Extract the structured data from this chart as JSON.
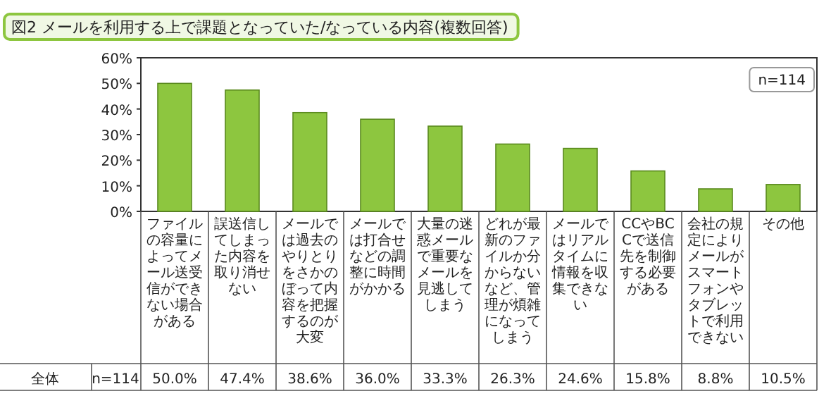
{
  "chart_data": {
    "type": "bar",
    "title": "図2 メールを利用する上で課題となっていた/なっている内容(複数回答)",
    "categories": [
      "ファイルの容量によってメール送受信ができない場合がある",
      "誤送信してしまった内容を取り消せない",
      "メールでは過去のやりとりをさかのぼって内容を把握するのが大変",
      "メールでは打合せなどの調整に時間がかかる",
      "大量の迷惑メールで重要なメールを見逃してしまう",
      "どれが最新のファイルか分からないなど、管理が煩雑になってしまう",
      "メールではリアルタイムに情報を収集できない",
      "CCやBCCで送信先を制御する必要がある",
      "会社の規定によりメールがスマートフォンやタブレットで利用できない",
      "その他"
    ],
    "values": [
      50.0,
      47.4,
      38.6,
      36.0,
      33.3,
      26.3,
      24.6,
      15.8,
      8.8,
      10.5
    ],
    "value_labels": [
      "50.0%",
      "47.4%",
      "38.6%",
      "36.0%",
      "33.3%",
      "26.3%",
      "24.6%",
      "15.8%",
      "8.8%",
      "10.5%"
    ],
    "color": "#8dc63f",
    "ylim": [
      0,
      60
    ],
    "yticks": [
      {
        "value": 0,
        "label": "0%"
      },
      {
        "value": 10,
        "label": "10%"
      },
      {
        "value": 20,
        "label": "20%"
      },
      {
        "value": 30,
        "label": "30%"
      },
      {
        "value": 40,
        "label": "40%"
      },
      {
        "value": 50,
        "label": "50%"
      },
      {
        "value": 60,
        "label": "60%"
      }
    ],
    "annotations": [
      "n=114",
      "全体",
      "n=114"
    ]
  }
}
